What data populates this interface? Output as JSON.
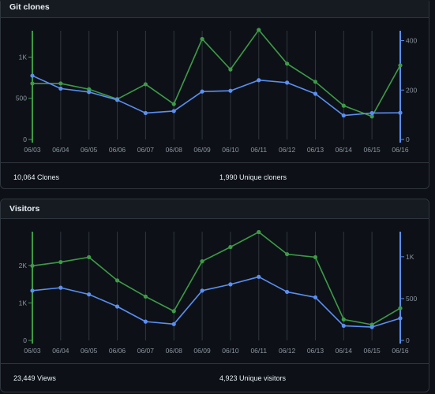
{
  "colors": {
    "green": "#3e9b47",
    "blue": "#5b8ff2",
    "grid": "#30363d",
    "text": "#8b949e"
  },
  "clones": {
    "title": "Git clones",
    "count_label": "10,064 Clones",
    "unique_label": "1,990 Unique cloners",
    "chart_data": {
      "type": "line",
      "categories": [
        "06/03",
        "06/04",
        "06/05",
        "06/06",
        "06/07",
        "06/08",
        "06/09",
        "06/10",
        "06/11",
        "06/12",
        "06/13",
        "06/14",
        "06/15",
        "06/16"
      ],
      "left_axis": {
        "ticks": [
          "0",
          "500",
          "1K"
        ],
        "values": [
          0,
          500,
          1000
        ],
        "range": [
          0,
          1320
        ]
      },
      "right_axis": {
        "ticks": [
          "0",
          "200",
          "400"
        ],
        "values": [
          0,
          200,
          400
        ],
        "range": [
          0,
          440
        ]
      },
      "series": [
        {
          "name": "Clones",
          "axis": "left",
          "color": "#3e9b47",
          "values": [
            680,
            680,
            610,
            490,
            670,
            430,
            1220,
            850,
            1330,
            920,
            700,
            410,
            280,
            900
          ]
        },
        {
          "name": "Unique cloners",
          "axis": "right",
          "color": "#5b8ff2",
          "values": [
            258,
            206,
            192,
            160,
            107,
            115,
            194,
            197,
            240,
            230,
            185,
            97,
            107,
            108
          ]
        }
      ]
    }
  },
  "visitors": {
    "title": "Visitors",
    "count_label": "23,449 Views",
    "unique_label": "4,923 Unique visitors",
    "chart_data": {
      "type": "line",
      "categories": [
        "06/03",
        "06/04",
        "06/05",
        "06/06",
        "06/07",
        "06/08",
        "06/09",
        "06/10",
        "06/11",
        "06/12",
        "06/13",
        "06/14",
        "06/15",
        "06/16"
      ],
      "left_axis": {
        "ticks": [
          "0",
          "1K",
          "2K"
        ],
        "values": [
          0,
          1000,
          2000
        ],
        "range": [
          0,
          2900
        ]
      },
      "right_axis": {
        "ticks": [
          "0",
          "500",
          "1K"
        ],
        "values": [
          0,
          500,
          1000
        ],
        "range": [
          0,
          1300
        ]
      },
      "series": [
        {
          "name": "Views",
          "axis": "left",
          "color": "#3e9b47",
          "values": [
            1990,
            2090,
            2220,
            1600,
            1170,
            780,
            2110,
            2490,
            2890,
            2300,
            2220,
            560,
            420,
            860
          ]
        },
        {
          "name": "Unique visitors",
          "axis": "right",
          "color": "#5b8ff2",
          "values": [
            595,
            630,
            550,
            405,
            225,
            195,
            595,
            670,
            760,
            580,
            515,
            175,
            160,
            265
          ]
        }
      ]
    }
  }
}
